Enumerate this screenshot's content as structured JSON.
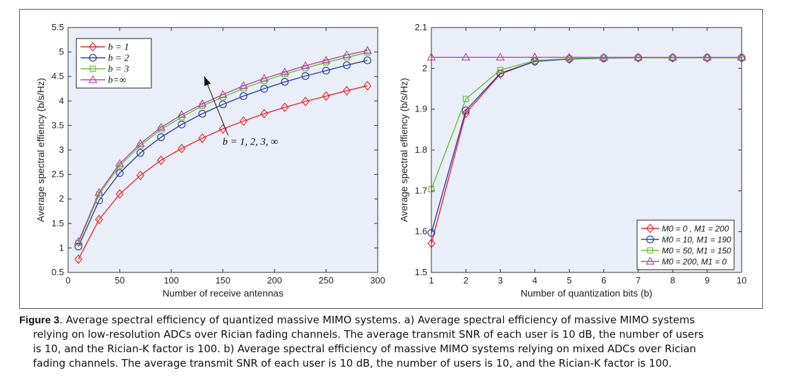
{
  "chart_data": [
    {
      "type": "line",
      "panel": "a",
      "xlabel": "Number of receive antennas",
      "ylabel": "Average spectral effiency (b/s/Hz)",
      "xlim": [
        0,
        300
      ],
      "ylim": [
        0.5,
        5.5
      ],
      "xticks": [
        0,
        50,
        100,
        150,
        200,
        250,
        300
      ],
      "yticks": [
        0.5,
        1,
        1.5,
        2,
        2.5,
        3,
        3.5,
        4,
        4.5,
        5,
        5.5
      ],
      "legend": "top-left",
      "grid": false,
      "x": [
        10,
        30,
        50,
        70,
        90,
        110,
        130,
        150,
        170,
        190,
        210,
        230,
        250,
        270,
        290
      ],
      "series": [
        {
          "name": "b = 1",
          "color": "#e8262b",
          "marker": "diamond",
          "values": [
            0.77,
            1.58,
            2.1,
            2.48,
            2.79,
            3.03,
            3.24,
            3.43,
            3.59,
            3.74,
            3.87,
            3.99,
            4.1,
            4.21,
            4.31
          ]
        },
        {
          "name": "b = 2",
          "color": "#2b3fa0",
          "marker": "circle",
          "values": [
            1.03,
            1.97,
            2.53,
            2.94,
            3.26,
            3.52,
            3.74,
            3.93,
            4.1,
            4.25,
            4.39,
            4.51,
            4.62,
            4.73,
            4.83
          ]
        },
        {
          "name": "b = 3",
          "color": "#6dbb3a",
          "marker": "square",
          "values": [
            1.1,
            2.09,
            2.68,
            3.09,
            3.42,
            3.67,
            3.9,
            4.08,
            4.26,
            4.41,
            4.55,
            4.67,
            4.79,
            4.89,
            4.99
          ]
        },
        {
          "name": "b=∞",
          "color": "#b34ba8",
          "marker": "triangle",
          "values": [
            1.13,
            2.13,
            2.72,
            3.13,
            3.46,
            3.72,
            3.94,
            4.13,
            4.31,
            4.46,
            4.59,
            4.72,
            4.83,
            4.94,
            5.03
          ]
        }
      ],
      "annotation": {
        "text": "b = 1, 2, 3, ∞",
        "x_from": 155,
        "y_from": 3.3,
        "x_to": 132,
        "y_to": 4.5
      }
    },
    {
      "type": "line",
      "panel": "b",
      "xlabel": "Number of quantization bits (b)",
      "ylabel": "Average spectral effiency (b/s/Hz)",
      "xlim": [
        1,
        10
      ],
      "ylim": [
        1.5,
        2.1
      ],
      "xticks": [
        1,
        2,
        3,
        4,
        5,
        6,
        7,
        8,
        9,
        10
      ],
      "yticks": [
        1.5,
        1.6,
        1.7,
        1.8,
        1.9,
        2,
        2.1
      ],
      "legend": "bottom-right",
      "grid": false,
      "x": [
        1,
        2,
        3,
        4,
        5,
        6,
        7,
        8,
        9,
        10
      ],
      "series": [
        {
          "name": "M0 = 0 , M1 = 200",
          "color": "#e8262b",
          "marker": "diamond",
          "values": [
            1.571,
            1.89,
            1.986,
            2.017,
            2.023,
            2.025,
            2.026,
            2.026,
            2.026,
            2.026
          ]
        },
        {
          "name": "M0 = 10, M1 = 190",
          "color": "#2b3fa0",
          "marker": "circle",
          "values": [
            1.597,
            1.897,
            1.988,
            2.017,
            2.023,
            2.025,
            2.026,
            2.026,
            2.026,
            2.026
          ]
        },
        {
          "name": "M0 = 50, M1 = 150",
          "color": "#6dbb3a",
          "marker": "square",
          "values": [
            1.704,
            1.925,
            1.996,
            2.019,
            2.024,
            2.026,
            2.026,
            2.026,
            2.026,
            2.026
          ]
        },
        {
          "name": "M0 = 200, M1 = 0",
          "color": "#b34ba8",
          "marker": "triangle",
          "values": [
            2.027,
            2.027,
            2.027,
            2.027,
            2.027,
            2.027,
            2.027,
            2.027,
            2.027,
            2.027
          ]
        }
      ]
    }
  ],
  "caption": {
    "lead": "Figure 3",
    "line1": ". Average spectral efficiency of quantized massive MIMO systems. a) Average spectral efficiency of massive MIMO systems",
    "line2": "relying on low-resolution ADCs over Rician fading channels. The average transmit SNR of each user is 10 dB, the number of users",
    "line3": "is 10, and the Rician-K factor is 100. b) Average spectral efficiency of massive MIMO systems relying on mixed ADCs over Rician",
    "line4": "fading channels. The average transmit SNR of each user is 10 dB, the number of users is 10, and the Rician-K factor is 100."
  },
  "colors": {
    "plot_background": "#e9eef8",
    "axes": "#333333"
  }
}
